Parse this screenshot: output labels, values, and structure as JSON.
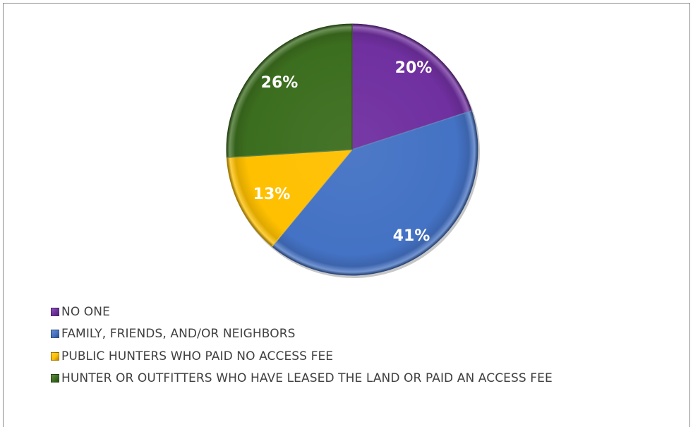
{
  "chart_data": {
    "type": "pie",
    "title": "",
    "start": "12 o'clock, clockwise",
    "legend_position": "bottom-left",
    "slices": [
      {
        "label": "NO ONE",
        "value": 20,
        "display": "20%",
        "color": "#7030a0"
      },
      {
        "label": "FAMILY, FRIENDS, AND/OR NEIGHBORS",
        "value": 41,
        "display": "41%",
        "color": "#4472c4"
      },
      {
        "label": "PUBLIC HUNTERS WHO PAID NO ACCESS FEE",
        "value": 13,
        "display": "13%",
        "color": "#ffc000"
      },
      {
        "label": "HUNTER OR OUTFITTERS WHO HAVE LEASED THE LAND OR PAID AN ACCESS FEE",
        "value": 26,
        "display": "26%",
        "color": "#3c6e1f"
      }
    ]
  }
}
